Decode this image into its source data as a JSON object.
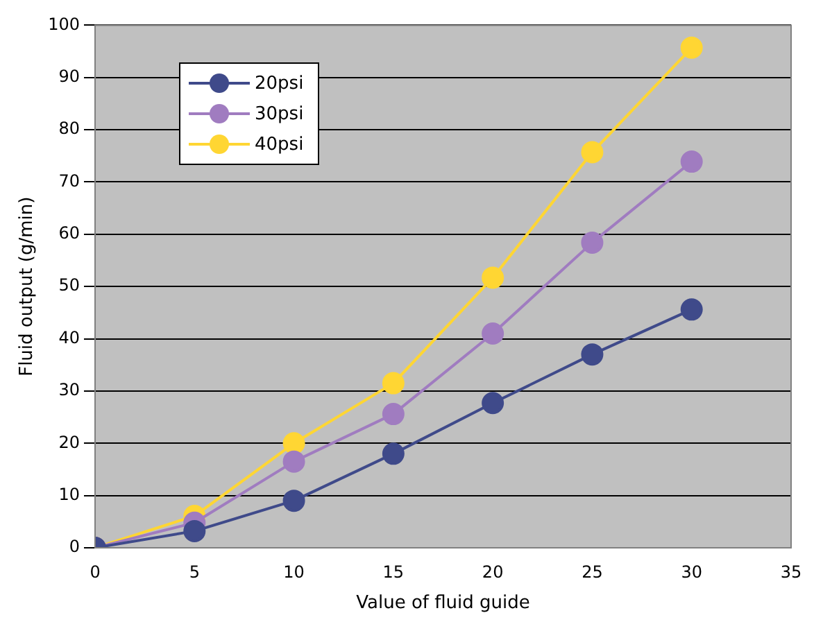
{
  "chart_data": {
    "type": "line",
    "xlabel": "Value of fluid guide",
    "ylabel": "Fluid output (g/min)",
    "x": [
      0,
      5,
      10,
      15,
      20,
      25,
      30
    ],
    "series": [
      {
        "name": "20psi",
        "color": "#3f4a8a",
        "values": [
          0,
          3.2,
          9,
          18,
          27.7,
          37,
          45.6
        ]
      },
      {
        "name": "30psi",
        "color": "#a07cc0",
        "values": [
          0,
          4.8,
          16.5,
          25.6,
          41,
          58.4,
          73.9
        ]
      },
      {
        "name": "40psi",
        "color": "#ffd633",
        "values": [
          0,
          6.1,
          20,
          31.5,
          51.7,
          75.7,
          95.7
        ]
      }
    ],
    "xlim": [
      0,
      35
    ],
    "xticks": [
      0,
      5,
      10,
      15,
      20,
      25,
      30,
      35
    ],
    "ylim": [
      0,
      100
    ],
    "yticks": [
      0,
      10,
      20,
      30,
      40,
      50,
      60,
      70,
      80,
      90,
      100
    ],
    "grid": "y",
    "legend": "top left",
    "marker": "circle",
    "line_style": "solid"
  }
}
